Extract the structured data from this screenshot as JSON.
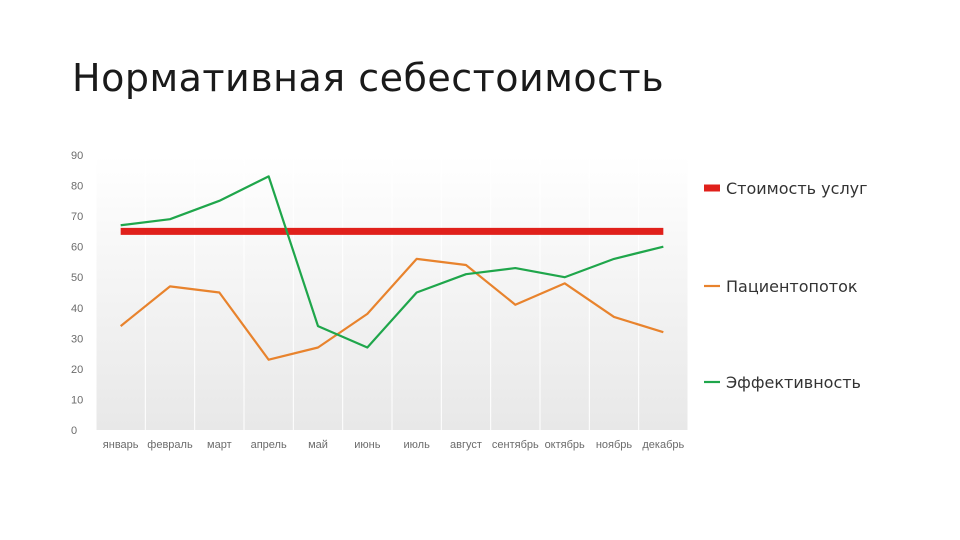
{
  "slide": {
    "title": "Нормативная себестоимость"
  },
  "chart_data": {
    "type": "line",
    "title": "",
    "xlabel": "",
    "ylabel": "",
    "ylim": [
      0,
      90
    ],
    "y_ticks": [
      "0",
      "10",
      "20",
      "30",
      "40",
      "50",
      "60",
      "70",
      "80",
      "90"
    ],
    "categories": [
      "январь",
      "февраль",
      "март",
      "апрель",
      "май",
      "июнь",
      "июль",
      "август",
      "сентябрь",
      "октябрь",
      "ноябрь",
      "декабрь"
    ],
    "grid": "vertical lines",
    "legend": "right",
    "series": [
      {
        "name": "Стоимость услуг",
        "color": "#e0201b",
        "values": [
          65,
          65,
          65,
          65,
          65,
          65,
          65,
          65,
          65,
          65,
          65,
          65
        ]
      },
      {
        "name": "Пациентопоток",
        "color": "#e8832d",
        "values": [
          34,
          47,
          45,
          23,
          27,
          38,
          56,
          54,
          41,
          48,
          37,
          32
        ]
      },
      {
        "name": "Эффективность",
        "color": "#1fa64b",
        "values": [
          67,
          69,
          75,
          83,
          34,
          27,
          45,
          51,
          53,
          50,
          56,
          60
        ]
      }
    ]
  }
}
